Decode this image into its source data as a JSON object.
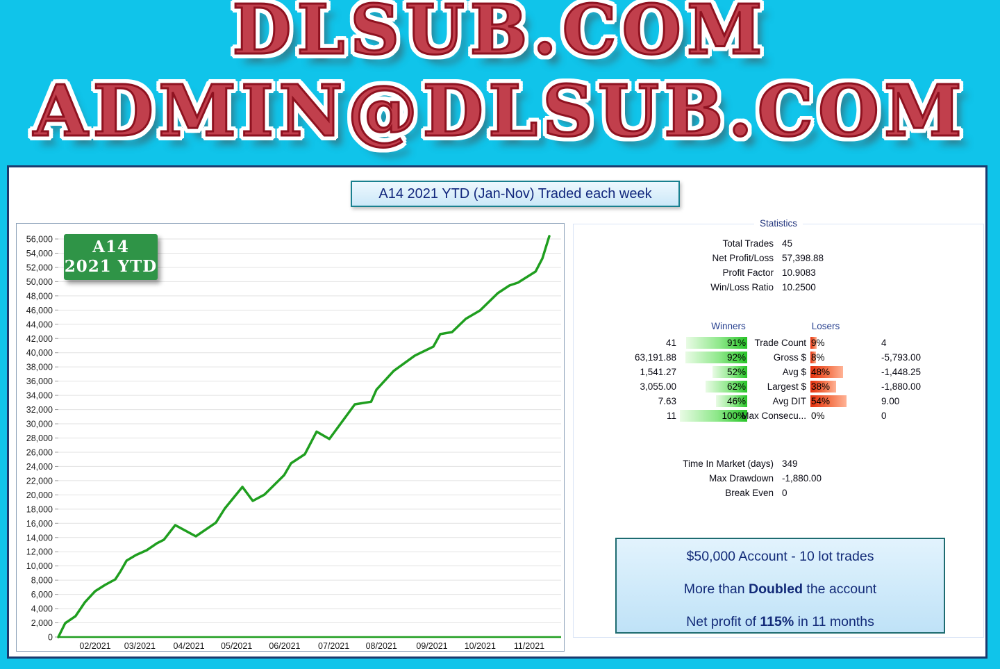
{
  "banner": {
    "line1": "DLSUB.COM",
    "line2": "ADMIN@DLSUB.COM",
    "text_color": "#c13f4c",
    "outline_color": "#8f1220",
    "background_color": "#10c4ea"
  },
  "title_bar": {
    "text": "A14 2021 YTD (Jan-Nov) Traded each week"
  },
  "chart_badge": {
    "line1": "A14",
    "line2": "2021 YTD",
    "color": "#2f9447"
  },
  "chart_data": {
    "type": "line",
    "title": "A14 2021 YTD equity curve (cumulative profit, traded each week)",
    "xlabel": "",
    "ylabel": "",
    "ylim": [
      0,
      56000
    ],
    "ytick_step": 2000,
    "grid": "horizontal",
    "legend_position": "none",
    "line_color": "#1f9e1f",
    "baseline_value": 0,
    "x_ticks": [
      {
        "label": "02/2021",
        "f": 0.075
      },
      {
        "label": "03/2021",
        "f": 0.166
      },
      {
        "label": "04/2021",
        "f": 0.266
      },
      {
        "label": "05/2021",
        "f": 0.363
      },
      {
        "label": "06/2021",
        "f": 0.461
      },
      {
        "label": "07/2021",
        "f": 0.561
      },
      {
        "label": "08/2021",
        "f": 0.658
      },
      {
        "label": "09/2021",
        "f": 0.761
      },
      {
        "label": "10/2021",
        "f": 0.859
      },
      {
        "label": "11/2021",
        "f": 0.959
      }
    ],
    "points": [
      [
        0.0,
        0
      ],
      [
        0.014,
        1950
      ],
      [
        0.035,
        2930
      ],
      [
        0.054,
        4890
      ],
      [
        0.075,
        6450
      ],
      [
        0.095,
        7330
      ],
      [
        0.116,
        8110
      ],
      [
        0.127,
        9290
      ],
      [
        0.139,
        10750
      ],
      [
        0.158,
        11530
      ],
      [
        0.18,
        12220
      ],
      [
        0.201,
        13200
      ],
      [
        0.215,
        13690
      ],
      [
        0.238,
        15740
      ],
      [
        0.28,
        14170
      ],
      [
        0.321,
        16100
      ],
      [
        0.339,
        18080
      ],
      [
        0.375,
        21120
      ],
      [
        0.396,
        19160
      ],
      [
        0.42,
        20040
      ],
      [
        0.46,
        22780
      ],
      [
        0.474,
        24440
      ],
      [
        0.502,
        25710
      ],
      [
        0.526,
        28900
      ],
      [
        0.552,
        27860
      ],
      [
        0.604,
        32740
      ],
      [
        0.637,
        33100
      ],
      [
        0.648,
        34800
      ],
      [
        0.683,
        37440
      ],
      [
        0.726,
        39590
      ],
      [
        0.764,
        40860
      ],
      [
        0.778,
        42620
      ],
      [
        0.802,
        42900
      ],
      [
        0.83,
        44770
      ],
      [
        0.859,
        45940
      ],
      [
        0.895,
        48380
      ],
      [
        0.919,
        49460
      ],
      [
        0.936,
        49850
      ],
      [
        0.972,
        51420
      ],
      [
        0.986,
        53270
      ],
      [
        1.0,
        56400
      ]
    ]
  },
  "statistics": {
    "legend": "Statistics",
    "summary": [
      {
        "label": "Total Trades",
        "value": "45"
      },
      {
        "label": "Net Profit/Loss",
        "value": "57,398.88"
      },
      {
        "label": "Profit Factor",
        "value": "10.9083"
      },
      {
        "label": "Win/Loss Ratio",
        "value": "10.2500"
      }
    ],
    "winners_header": "Winners",
    "losers_header": "Losers",
    "comparison": [
      {
        "metric": "Trade Count",
        "win_value": "41",
        "win_pct": 91,
        "lose_pct": 9,
        "lose_value": "4"
      },
      {
        "metric": "Gross $",
        "win_value": "63,191.88",
        "win_pct": 92,
        "lose_pct": 8,
        "lose_value": "-5,793.00"
      },
      {
        "metric": "Avg $",
        "win_value": "1,541.27",
        "win_pct": 52,
        "lose_pct": 48,
        "lose_value": "-1,448.25"
      },
      {
        "metric": "Largest $",
        "win_value": "3,055.00",
        "win_pct": 62,
        "lose_pct": 38,
        "lose_value": "-1,880.00"
      },
      {
        "metric": "Avg DIT",
        "win_value": "7.63",
        "win_pct": 46,
        "lose_pct": 54,
        "lose_value": "9.00"
      },
      {
        "metric": "Max Consecu...",
        "win_value": "11",
        "win_pct": 100,
        "lose_pct": 0,
        "lose_value": "0"
      }
    ],
    "extra": [
      {
        "label": "Time In Market (days)",
        "value": "349"
      },
      {
        "label": "Max Drawdown",
        "value": "-1,880.00"
      },
      {
        "label": "Break Even",
        "value": "0"
      }
    ]
  },
  "account_box": {
    "line1": "$50,000 Account - 10 lot trades",
    "line2_prefix": "More than ",
    "line2_bold": "Doubled",
    "line2_suffix": " the account",
    "line3_prefix": "Net profit of ",
    "line3_bold": "115%",
    "line3_suffix": " in 11 months"
  }
}
